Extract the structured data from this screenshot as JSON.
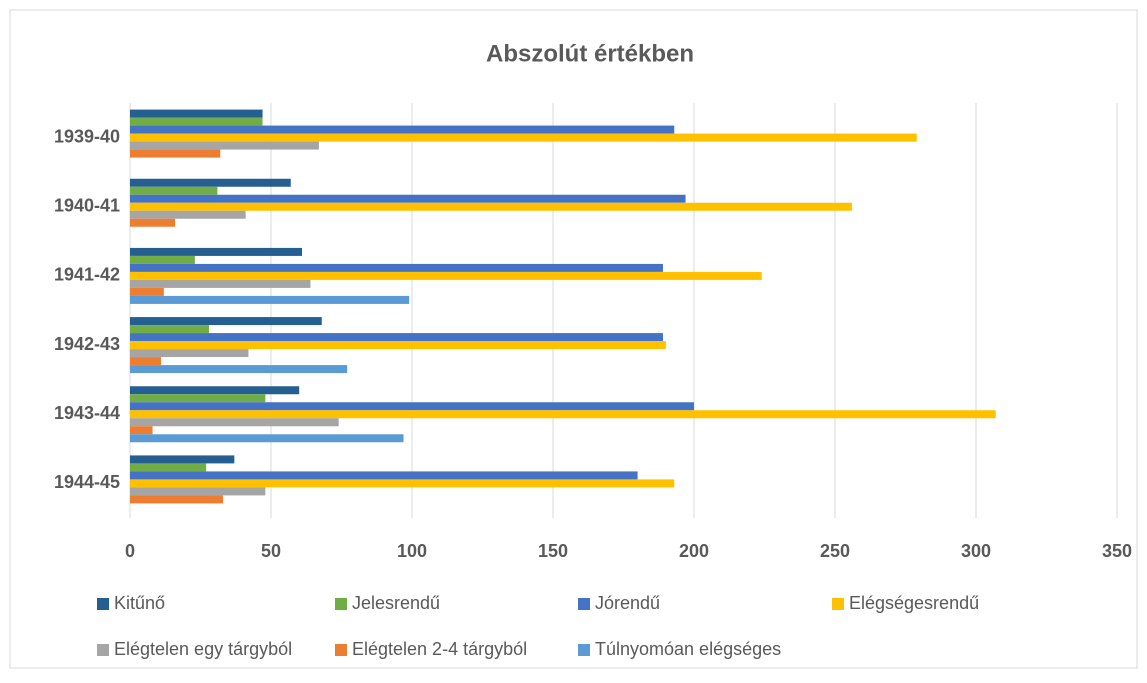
{
  "chart_data": {
    "type": "bar",
    "orientation": "horizontal",
    "title": "Abszolút értékben",
    "categories": [
      "1939-40",
      "1940-41",
      "1941-42",
      "1942-43",
      "1943-44",
      "1944-45"
    ],
    "series": [
      {
        "name": "Kitűnő",
        "color": "#255e91",
        "values": [
          47,
          57,
          61,
          68,
          60,
          37
        ]
      },
      {
        "name": "Jelesrendű",
        "color": "#70ad47",
        "values": [
          47,
          31,
          23,
          28,
          48,
          27
        ]
      },
      {
        "name": "Jórendű",
        "color": "#4472c4",
        "values": [
          193,
          197,
          189,
          189,
          200,
          180
        ]
      },
      {
        "name": "Elégségesrendű",
        "color": "#ffc000",
        "values": [
          279,
          256,
          224,
          190,
          307,
          193
        ]
      },
      {
        "name": "Elégtelen egy tárgyból",
        "color": "#a5a5a5",
        "values": [
          67,
          41,
          64,
          42,
          74,
          48
        ]
      },
      {
        "name": "Elégtelen 2-4 tárgyból",
        "color": "#ed7d31",
        "values": [
          32,
          16,
          12,
          11,
          8,
          33
        ]
      },
      {
        "name": "Túlnyomóan elégséges",
        "color": "#5b9bd5",
        "values": [
          null,
          null,
          99,
          77,
          97,
          null
        ]
      }
    ],
    "xlim": [
      0,
      350
    ],
    "xticks": [
      0,
      50,
      100,
      150,
      200,
      250,
      300,
      350
    ],
    "grid": true,
    "legend": "bottom"
  }
}
